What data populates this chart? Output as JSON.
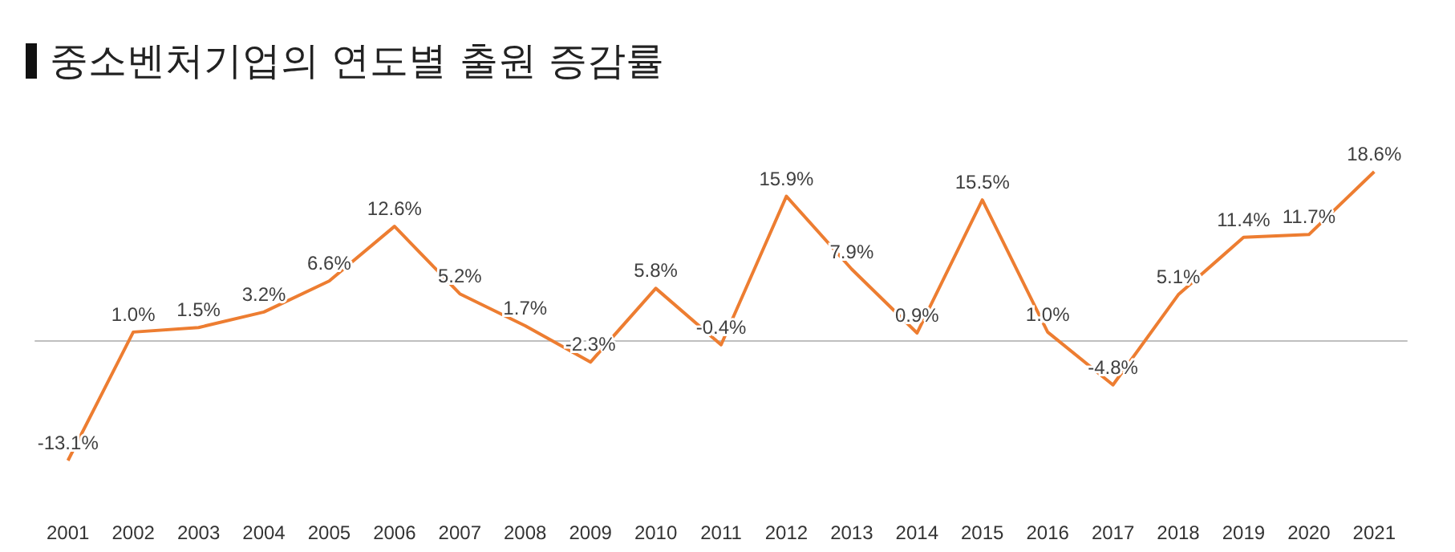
{
  "chart_data": {
    "type": "line",
    "title": "중소벤처기업의 연도별 출원 증감률",
    "categories": [
      "2001",
      "2002",
      "2003",
      "2004",
      "2005",
      "2006",
      "2007",
      "2008",
      "2009",
      "2010",
      "2011",
      "2012",
      "2013",
      "2014",
      "2015",
      "2016",
      "2017",
      "2018",
      "2019",
      "2020",
      "2021"
    ],
    "series": [
      {
        "color": "#ed7d31",
        "values": [
          -13.1,
          1.0,
          1.5,
          3.2,
          6.6,
          12.6,
          5.2,
          1.7,
          -2.3,
          5.8,
          -0.4,
          15.9,
          7.9,
          0.9,
          15.5,
          1.0,
          -4.8,
          5.1,
          11.4,
          11.7,
          18.6
        ],
        "value_labels": [
          "-13.1%",
          "1.0%",
          "1.5%",
          "3.2%",
          "6.6%",
          "12.6%",
          "5.2%",
          "1.7%",
          "-2.3%",
          "5.8%",
          "-0.4%",
          "15.9%",
          "7.9%",
          "0.9%",
          "15.5%",
          "1.0%",
          "-4.8%",
          "5.1%",
          "11.4%",
          "11.7%",
          "18.6%"
        ]
      }
    ],
    "tick_labels": "x",
    "grid": false,
    "marker": "none",
    "line_style": "solid"
  }
}
